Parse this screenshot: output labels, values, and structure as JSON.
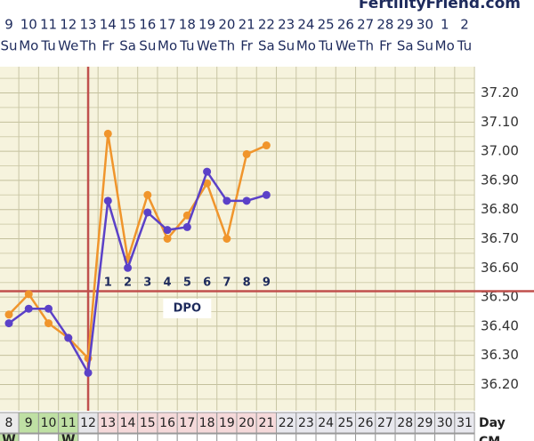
{
  "site_name": "FertilityFriend.com",
  "chart_data": {
    "type": "line",
    "categories": [
      "9",
      "10",
      "11",
      "12",
      "13",
      "14",
      "15",
      "16",
      "17",
      "18",
      "19",
      "20",
      "21",
      "22",
      "23",
      "24",
      "25",
      "26",
      "27",
      "28",
      "29",
      "30",
      "1",
      "2"
    ],
    "weekdays": [
      "Su",
      "Mo",
      "Tu",
      "We",
      "Th",
      "Fr",
      "Sa",
      "Su",
      "Mo",
      "Tu",
      "We",
      "Th",
      "Fr",
      "Sa",
      "Su",
      "Mo",
      "Tu",
      "We",
      "Th",
      "Fr",
      "Sa",
      "Su",
      "Mo",
      "Tu"
    ],
    "cycle_days": [
      8,
      9,
      10,
      11,
      12,
      13,
      14,
      15,
      16,
      17,
      18,
      19,
      20,
      21,
      22,
      23,
      24,
      25,
      26,
      27,
      28,
      29,
      30,
      31
    ],
    "cycle_day_label": "Day",
    "cycle_day_colors": [
      "#ebebeb",
      "#bfe0a4",
      "#bfe0a4",
      "#bfe0a4",
      "#e6e6ea",
      "#f5d9da",
      "#f5d9da",
      "#f5d9da",
      "#f5d9da",
      "#f5d9da",
      "#f5d9da",
      "#f5d9da",
      "#f5d9da",
      "#f5d9da",
      "#e8e8ee",
      "#e8e8ee",
      "#e8e8ee",
      "#e8e8ee",
      "#e8e8ee",
      "#e8e8ee",
      "#e8e8ee",
      "#e8e8ee",
      "#e8e8ee",
      "#e8e8ee"
    ],
    "cm_label": "CM",
    "cm_values": [
      "W",
      null,
      null,
      "W",
      null,
      null,
      null,
      null,
      null,
      null,
      null,
      null,
      null,
      null,
      null,
      null,
      null,
      null,
      null,
      null,
      null,
      null,
      null,
      null
    ],
    "dpo_label": "DPO",
    "dpo_days": [
      null,
      null,
      null,
      null,
      null,
      1,
      2,
      3,
      4,
      5,
      6,
      7,
      8,
      9,
      null,
      null,
      null,
      null,
      null,
      null,
      null,
      null,
      null,
      null
    ],
    "series": [
      {
        "color": "#f0952c",
        "values": [
          36.44,
          36.51,
          36.41,
          36.36,
          36.29,
          37.06,
          36.63,
          36.85,
          36.7,
          36.78,
          36.89,
          36.7,
          36.99,
          37.02,
          null,
          null,
          null,
          null,
          null,
          null,
          null,
          null,
          null,
          null
        ]
      },
      {
        "color": "#5b41c8",
        "values": [
          36.41,
          36.46,
          36.46,
          36.36,
          36.24,
          36.83,
          36.6,
          36.79,
          36.73,
          36.74,
          36.93,
          36.83,
          36.83,
          36.85,
          null,
          null,
          null,
          null,
          null,
          null,
          null,
          null,
          null,
          null
        ]
      }
    ],
    "coverline": 36.52,
    "coverline_color": "#c0504d",
    "ovulation_category": "13",
    "ylim": [
      36.11,
      37.29
    ],
    "yticks": [
      {
        "value": 36.2,
        "label": "36.20"
      },
      {
        "value": 36.3,
        "label": "36.30"
      },
      {
        "value": 36.4,
        "label": "36.40"
      },
      {
        "value": 36.5,
        "label": "36.50"
      },
      {
        "value": 36.6,
        "label": "36.60"
      },
      {
        "value": 36.7,
        "label": "36.70"
      },
      {
        "value": 36.8,
        "label": "36.80"
      },
      {
        "value": 36.9,
        "label": "36.90"
      },
      {
        "value": 37.0,
        "label": "37.00"
      },
      {
        "value": 37.1,
        "label": "37.10"
      },
      {
        "value": 37.2,
        "label": "37.20"
      }
    ],
    "minor_yticks": [
      36.15,
      36.25,
      36.35,
      36.45,
      36.55,
      36.65,
      36.75,
      36.85,
      36.95,
      37.05,
      37.15,
      37.25
    ],
    "grid": true
  }
}
